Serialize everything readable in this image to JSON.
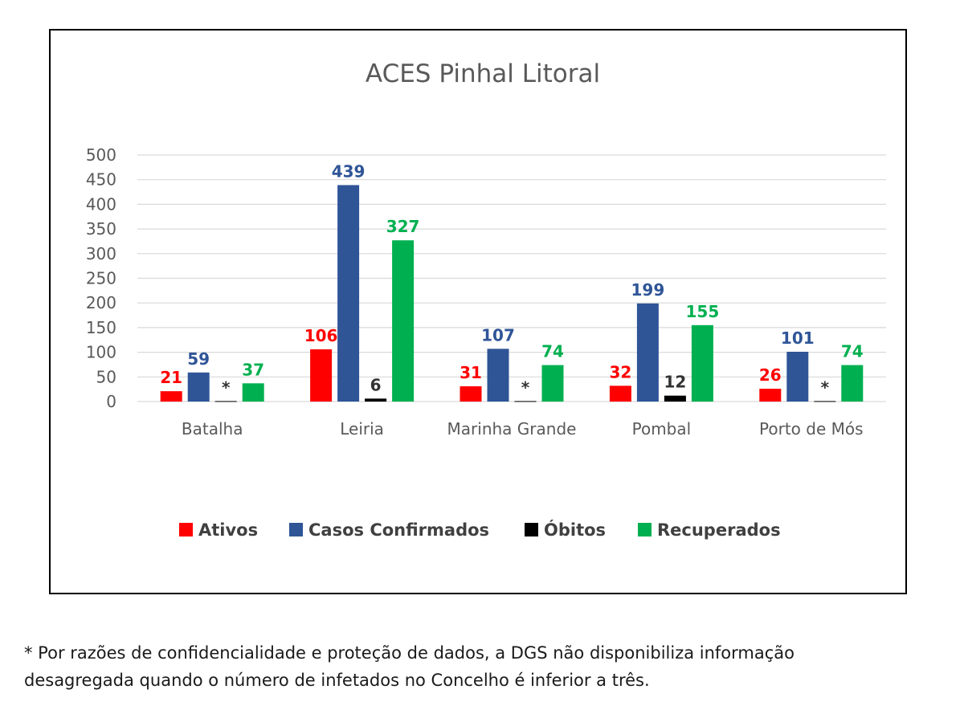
{
  "chart_data": {
    "type": "bar",
    "title": "ACES Pinhal Litoral",
    "categories": [
      "Batalha",
      "Leiria",
      "Marinha Grande",
      "Pombal",
      "Porto de Mós"
    ],
    "series": [
      {
        "name": "Ativos",
        "color": "#ff0000",
        "values": [
          21,
          106,
          31,
          32,
          26
        ],
        "labels": [
          "21",
          "106",
          "31",
          "32",
          "26"
        ]
      },
      {
        "name": "Casos Confirmados",
        "color": "#2f5597",
        "values": [
          59,
          439,
          107,
          199,
          101
        ],
        "labels": [
          "59",
          "439",
          "107",
          "199",
          "101"
        ]
      },
      {
        "name": "Óbitos",
        "color": "#000000",
        "values": [
          1,
          6,
          1,
          12,
          1
        ],
        "labels": [
          "*",
          "6",
          "*",
          "12",
          "*"
        ]
      },
      {
        "name": "Recuperados",
        "color": "#00b050",
        "values": [
          37,
          327,
          74,
          155,
          74
        ],
        "labels": [
          "37",
          "327",
          "74",
          "155",
          "74"
        ]
      }
    ],
    "yticks": [
      "0",
      "50",
      "100",
      "150",
      "200",
      "250",
      "300",
      "350",
      "400",
      "450",
      "500"
    ],
    "ylim": [
      0,
      500
    ],
    "grid": true,
    "legend_position": "bottom"
  },
  "footnote": {
    "line1": "* Por razões de confidencialidade e proteção de dados, a DGS não disponibiliza informação",
    "line2": "desagregada quando o número de infetados no Concelho é inferior a três."
  }
}
